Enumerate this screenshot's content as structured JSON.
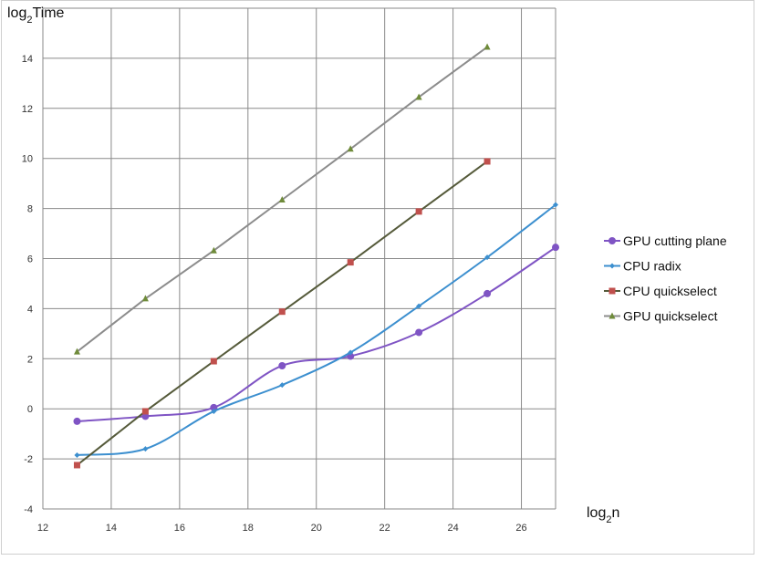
{
  "chart_data": {
    "type": "line",
    "title": "",
    "ylabel_main": "log",
    "ylabel_sub": "2",
    "ylabel_tail": "Time",
    "xlabel_main": "log",
    "xlabel_sub": "2",
    "xlabel_tail": "n",
    "xlim": [
      12,
      27
    ],
    "ylim": [
      -4,
      16
    ],
    "x_ticks": [
      12,
      14,
      16,
      18,
      20,
      22,
      24,
      26
    ],
    "y_ticks": [
      -4,
      -2,
      0,
      2,
      4,
      6,
      8,
      10,
      12,
      14
    ],
    "grid": true,
    "legend_position": "right",
    "series": [
      {
        "name": "GPU cutting plane",
        "color": "#7f54c4",
        "marker": "circle",
        "smooth": true,
        "x": [
          13,
          15,
          17,
          19,
          21,
          23,
          25,
          27
        ],
        "y": [
          -0.5,
          -0.3,
          0.05,
          1.72,
          2.1,
          3.05,
          4.6,
          6.45
        ]
      },
      {
        "name": "CPU radix",
        "color": "#3c8fcf",
        "marker": "diamond",
        "smooth": true,
        "x": [
          13,
          15,
          17,
          19,
          21,
          23,
          25,
          27
        ],
        "y": [
          -1.85,
          -1.6,
          -0.1,
          0.95,
          2.25,
          4.1,
          6.05,
          8.15
        ]
      },
      {
        "name": "CPU quickselect",
        "color": "#c0504d",
        "line_color": "#555a3a",
        "marker": "square",
        "smooth": false,
        "x": [
          13,
          15,
          17,
          19,
          21,
          23,
          25
        ],
        "y": [
          -2.25,
          -0.1,
          1.9,
          3.88,
          5.85,
          7.88,
          9.88
        ]
      },
      {
        "name": "GPU quickselect",
        "color": "#6f8b3a",
        "line_color": "#8c8c8c",
        "marker": "triangle",
        "smooth": false,
        "x": [
          13,
          15,
          17,
          19,
          21,
          23,
          25
        ],
        "y": [
          2.28,
          4.4,
          6.32,
          8.35,
          10.38,
          12.45,
          14.45
        ]
      }
    ]
  }
}
